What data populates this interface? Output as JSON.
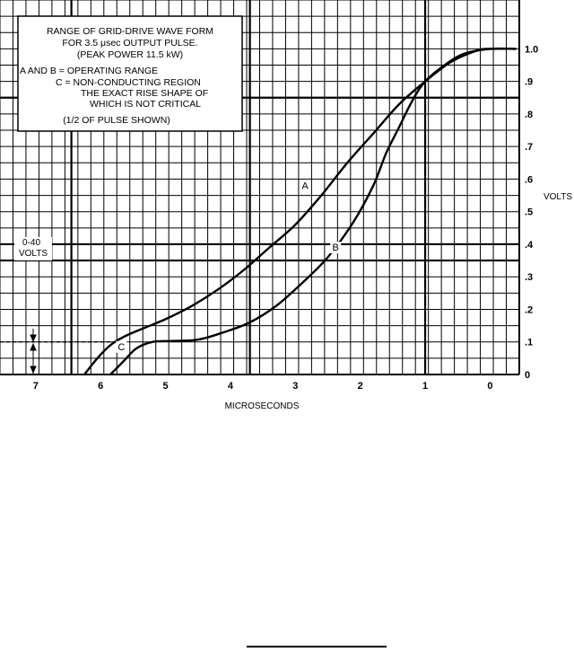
{
  "chart_data": {
    "type": "line",
    "title": "",
    "xlabel": "MICROSECONDS",
    "ylabel": "VOLTS",
    "xlim": [
      7.55,
      -0.45
    ],
    "ylim": [
      0,
      1.15
    ],
    "x_reversed": true,
    "grid": true,
    "x_ticks": [
      {
        "value": 7,
        "label": "7"
      },
      {
        "value": 6,
        "label": "6"
      },
      {
        "value": 5,
        "label": "5"
      },
      {
        "value": 4,
        "label": "4"
      },
      {
        "value": 3,
        "label": "3"
      },
      {
        "value": 2,
        "label": "2"
      },
      {
        "value": 1,
        "label": "1"
      },
      {
        "value": 0,
        "label": "0"
      }
    ],
    "y_ticks": [
      {
        "value": 0,
        "label": "0"
      },
      {
        "value": 0.1,
        "label": ".1"
      },
      {
        "value": 0.2,
        "label": ".2"
      },
      {
        "value": 0.3,
        "label": ".3"
      },
      {
        "value": 0.4,
        "label": ".4"
      },
      {
        "value": 0.5,
        "label": ".5"
      },
      {
        "value": 0.6,
        "label": ".6"
      },
      {
        "value": 0.7,
        "label": ".7"
      },
      {
        "value": 0.8,
        "label": ".8"
      },
      {
        "value": 0.9,
        "label": ".9"
      },
      {
        "value": 1.0,
        "label": "1.0"
      }
    ],
    "series": [
      {
        "name": "A",
        "label_at": [
          2.85,
          0.57
        ],
        "points": [
          [
            6.25,
            0.0
          ],
          [
            6.05,
            0.05
          ],
          [
            5.85,
            0.09
          ],
          [
            5.6,
            0.12
          ],
          [
            5.3,
            0.145
          ],
          [
            5.0,
            0.17
          ],
          [
            4.6,
            0.21
          ],
          [
            4.2,
            0.26
          ],
          [
            3.8,
            0.32
          ],
          [
            3.4,
            0.39
          ],
          [
            3.0,
            0.46
          ],
          [
            2.6,
            0.55
          ],
          [
            2.2,
            0.65
          ],
          [
            1.8,
            0.74
          ],
          [
            1.4,
            0.83
          ],
          [
            1.0,
            0.9
          ],
          [
            0.6,
            0.96
          ],
          [
            0.2,
            0.995
          ],
          [
            0.0,
            1.0
          ],
          [
            -0.4,
            1.0
          ]
        ]
      },
      {
        "name": "B",
        "label_at": [
          2.38,
          0.38
        ],
        "points": [
          [
            5.85,
            0.0
          ],
          [
            5.65,
            0.04
          ],
          [
            5.45,
            0.08
          ],
          [
            5.2,
            0.1
          ],
          [
            4.9,
            0.103
          ],
          [
            4.5,
            0.107
          ],
          [
            4.1,
            0.13
          ],
          [
            3.7,
            0.16
          ],
          [
            3.3,
            0.21
          ],
          [
            2.9,
            0.28
          ],
          [
            2.5,
            0.36
          ],
          [
            2.1,
            0.47
          ],
          [
            1.8,
            0.58
          ],
          [
            1.6,
            0.68
          ],
          [
            1.4,
            0.76
          ],
          [
            1.2,
            0.84
          ],
          [
            1.0,
            0.9
          ],
          [
            0.7,
            0.95
          ],
          [
            0.4,
            0.985
          ],
          [
            0.0,
            1.0
          ],
          [
            -0.4,
            1.0
          ]
        ]
      }
    ],
    "reference_line": {
      "y": 0.1,
      "style": "dashed",
      "x_from": 7.55,
      "x_to": 5.65
    },
    "annotations": {
      "box_lines": [
        "RANGE OF GRID-DRIVE WAVE FORM",
        "FOR 3.5 μsec OUTPUT PULSE.",
        "(PEAK POWER 11.5 kW)",
        "A AND B = OPERATING RANGE",
        "C = NON-CONDUCTING REGION",
        "THE EXACT RISE SHAPE OF",
        "WHICH IS NOT CRITICAL",
        "(1/2 OF PULSE SHOWN)"
      ],
      "volts_range_line1": "0-40",
      "volts_range_line2": "VOLTS",
      "region_label": "C",
      "region_label_at": [
        5.68,
        0.075
      ]
    }
  }
}
